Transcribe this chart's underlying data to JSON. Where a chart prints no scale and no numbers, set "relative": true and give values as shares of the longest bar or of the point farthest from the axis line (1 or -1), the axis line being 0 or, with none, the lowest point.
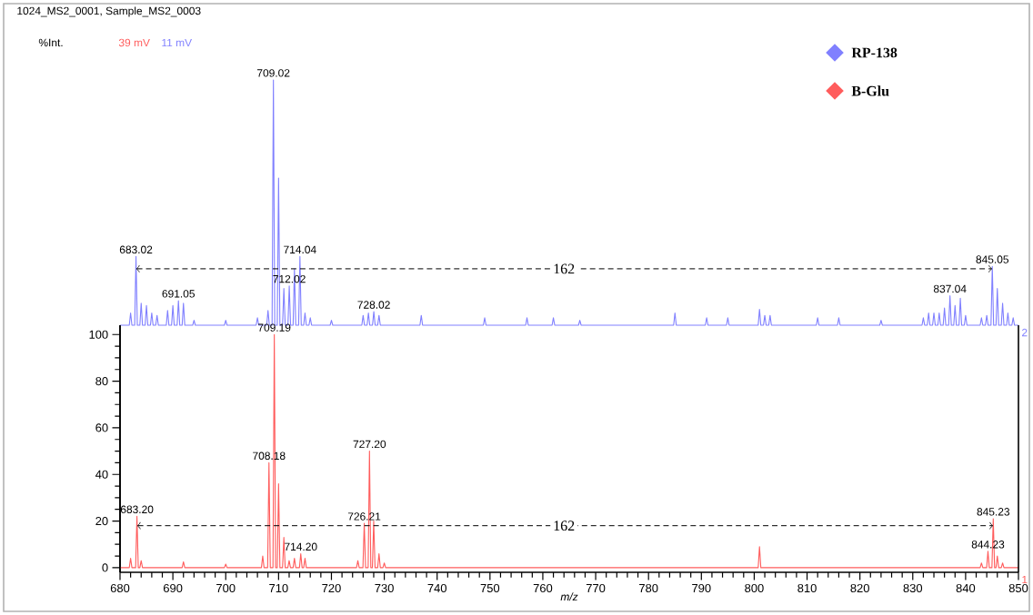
{
  "chart_data": [
    {
      "type": "line",
      "title": "1024_MS2_0001, Sample_MS2_0003",
      "ylabel": "%Int.",
      "relative": true,
      "xlim": [
        680,
        850
      ],
      "xticks": [
        680,
        690,
        700,
        710,
        720,
        730,
        740,
        750,
        760,
        770,
        780,
        790,
        800,
        810,
        820,
        830,
        840,
        850
      ],
      "tick_labels": false,
      "legend": "top right",
      "series": [
        {
          "name": "RP-138",
          "color": "#8080ff",
          "x": [
            680,
            681.75,
            682,
            682.25,
            682.77,
            683.02,
            683.27,
            683.75,
            684,
            684.25,
            684.75,
            685,
            685.25,
            685.75,
            686,
            686.25,
            686.75,
            687,
            687.25,
            688.75,
            689,
            689.25,
            689.75,
            690,
            690.25,
            690.8,
            691.05,
            691.3,
            691.75,
            692,
            692.25,
            693.75,
            694,
            694.25,
            699.75,
            700,
            700.25,
            705.75,
            706,
            706.25,
            707.75,
            708,
            708.25,
            708.77,
            709.02,
            709.27,
            709.75,
            710,
            710.25,
            710.75,
            711,
            711.25,
            711.77,
            712.02,
            712.27,
            712.75,
            713,
            713.25,
            713.79,
            714.04,
            714.29,
            714.75,
            715,
            715.25,
            715.75,
            716,
            716.25,
            719.75,
            720,
            720.25,
            725.75,
            726,
            726.25,
            726.75,
            727,
            727.25,
            727.77,
            728.02,
            728.27,
            728.75,
            729,
            729.25,
            736.75,
            737,
            737.25,
            748.75,
            749,
            749.25,
            756.75,
            757,
            757.25,
            761.75,
            762,
            762.25,
            766.75,
            767,
            767.25,
            784.75,
            785,
            785.25,
            790.75,
            791,
            791.25,
            794.75,
            795,
            795.25,
            800.75,
            801,
            801.25,
            801.75,
            802,
            802.25,
            802.75,
            803,
            803.25,
            811.75,
            812,
            812.25,
            815.75,
            816,
            816.25,
            823.75,
            824,
            824.25,
            831.75,
            832,
            832.25,
            832.75,
            833,
            833.25,
            833.75,
            834,
            834.25,
            834.75,
            835,
            835.25,
            835.75,
            836,
            836.25,
            836.79,
            837.04,
            837.29,
            837.75,
            838,
            838.25,
            838.75,
            839,
            839.25,
            839.75,
            840,
            840.25,
            842.75,
            843,
            843.25,
            843.75,
            844,
            844.25,
            844.8,
            845.05,
            845.3,
            845.75,
            846,
            846.25,
            846.75,
            847,
            847.25,
            847.75,
            848,
            848.25,
            848.75,
            849,
            849.25,
            850
          ],
          "values": [
            0,
            0,
            0.05,
            0,
            0,
            0.28,
            0,
            0,
            0.09,
            0,
            0,
            0.08,
            0,
            0,
            0.05,
            0,
            0,
            0.04,
            0,
            0,
            0.06,
            0,
            0,
            0.08,
            0,
            0,
            0.1,
            0,
            0,
            0.09,
            0,
            0,
            0.02,
            0,
            0,
            0.02,
            0,
            0,
            0.03,
            0,
            0,
            0.06,
            0,
            0,
            1,
            0,
            0,
            0.6,
            0,
            0,
            0.15,
            0,
            0,
            0.16,
            0,
            0,
            0.23,
            0,
            0,
            0.28,
            0,
            0,
            0.05,
            0,
            0,
            0.03,
            0,
            0,
            0.02,
            0,
            0,
            0.04,
            0,
            0,
            0.05,
            0,
            0,
            0.055,
            0,
            0,
            0.04,
            0,
            0,
            0.04,
            0,
            0,
            0.03,
            0,
            0,
            0.03,
            0,
            0,
            0.03,
            0,
            0,
            0.02,
            0,
            0,
            0.05,
            0,
            0,
            0.03,
            0,
            0,
            0.03,
            0,
            0,
            0.065,
            0,
            0,
            0.04,
            0,
            0,
            0.04,
            0,
            0,
            0.03,
            0,
            0,
            0.03,
            0,
            0,
            0.02,
            0,
            0,
            0.03,
            0,
            0,
            0.05,
            0,
            0,
            0.05,
            0,
            0,
            0.05,
            0,
            0,
            0.07,
            0,
            0,
            0.12,
            0,
            0,
            0.08,
            0,
            0,
            0.11,
            0,
            0,
            0.04,
            0,
            0,
            0.03,
            0,
            0,
            0.04,
            0,
            0,
            0.24,
            0,
            0,
            0.15,
            0,
            0,
            0.09,
            0,
            0,
            0.05,
            0,
            0,
            0.03,
            0,
            0
          ]
        }
      ],
      "annotations": [
        "11 mV",
        "2",
        {
          "text": "683.02",
          "x": 683.02,
          "y": 0.28
        },
        {
          "text": "691.05",
          "x": 691.05,
          "y": 0.1
        },
        {
          "text": "709.02",
          "x": 709.02,
          "y": 1
        },
        {
          "text": "712.02",
          "x": 712.02,
          "y": 0.16
        },
        {
          "text": "714.04",
          "x": 714.04,
          "y": 0.28
        },
        {
          "text": "728.02",
          "x": 728.02,
          "y": 0.055
        },
        {
          "text": "837.04",
          "x": 837.04,
          "y": 0.12
        },
        {
          "text": "845.05",
          "x": 845.05,
          "y": 0.24
        },
        {
          "text": "162",
          "x": 764,
          "y": 0.23
        }
      ],
      "ref_lines": [
        {
          "axis": "y",
          "value": 0.23,
          "line_style": "dashed"
        }
      ]
    },
    {
      "type": "line",
      "xlabel": "m/z",
      "xlim": [
        680,
        850
      ],
      "ylim": [
        -2,
        104
      ],
      "xticks": [
        680,
        690,
        700,
        710,
        720,
        730,
        740,
        750,
        760,
        770,
        780,
        790,
        800,
        810,
        820,
        830,
        840,
        850
      ],
      "yticks": [
        0,
        20,
        40,
        60,
        80,
        100
      ],
      "series": [
        {
          "name": "B-Glu",
          "color": "#ff5c5c",
          "x": [
            680,
            681.75,
            682,
            682.25,
            682.95,
            683.2,
            683.45,
            683.75,
            684,
            684.25,
            691.75,
            692,
            692.25,
            699.75,
            700,
            700.25,
            706.75,
            707,
            707.25,
            707.93,
            708.18,
            708.43,
            708.94,
            709.19,
            709.44,
            709.75,
            710,
            710.25,
            710.75,
            711,
            711.25,
            711.75,
            712,
            712.25,
            712.75,
            713,
            713.25,
            713.95,
            714.2,
            714.45,
            714.75,
            715,
            715.25,
            724.75,
            725,
            725.25,
            725.96,
            726.21,
            726.46,
            726.95,
            727.2,
            727.45,
            727.75,
            728,
            728.25,
            728.75,
            729,
            729.25,
            729.75,
            730,
            730.25,
            800.75,
            801,
            801.25,
            842.75,
            843,
            843.25,
            843.98,
            844.23,
            844.48,
            844.98,
            845.23,
            845.48,
            845.75,
            846,
            846.25,
            846.75,
            847,
            847.25,
            850
          ],
          "values": [
            0,
            0,
            4,
            0,
            0,
            22,
            0,
            0,
            3,
            0,
            0,
            2.5,
            0,
            0,
            1.5,
            0,
            0,
            5,
            0,
            0,
            45,
            0,
            0,
            100,
            0,
            0,
            36,
            0,
            0,
            13,
            0,
            0,
            3,
            0,
            0,
            4,
            0,
            0,
            6,
            0,
            0,
            4,
            0,
            0,
            3,
            0,
            0,
            19,
            0,
            0,
            50,
            0,
            0,
            20,
            0,
            0,
            6,
            0,
            0,
            2,
            0,
            0,
            9,
            0,
            0,
            2,
            0,
            0,
            7,
            0,
            0,
            21,
            0,
            0,
            5,
            0,
            0,
            2,
            0,
            0
          ]
        }
      ],
      "annotations": [
        "39 mV",
        "1",
        {
          "text": "683.20",
          "x": 683.2,
          "y": 22
        },
        {
          "text": "708.18",
          "x": 708.18,
          "y": 45
        },
        {
          "text": "709.19",
          "x": 709.19,
          "y": 100
        },
        {
          "text": "714.20",
          "x": 714.2,
          "y": 6
        },
        {
          "text": "726.21",
          "x": 726.21,
          "y": 19
        },
        {
          "text": "727.20",
          "x": 727.2,
          "y": 50
        },
        {
          "text": "844.23",
          "x": 844.23,
          "y": 7
        },
        {
          "text": "845.23",
          "x": 845.23,
          "y": 21
        },
        {
          "text": "162",
          "x": 764,
          "y": 18
        }
      ],
      "ref_lines": [
        {
          "axis": "y",
          "value": 18,
          "line_style": "dashed"
        }
      ]
    }
  ]
}
